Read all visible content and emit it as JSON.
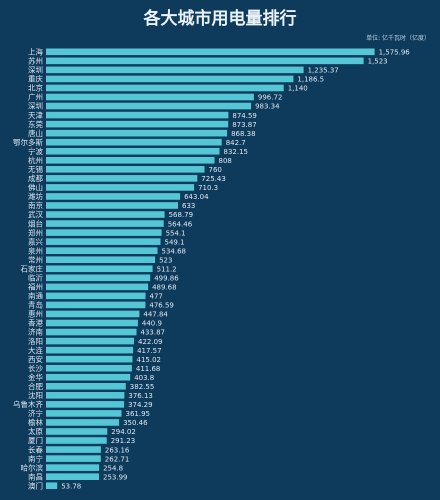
{
  "chart_data": {
    "type": "bar",
    "orientation": "horizontal",
    "title": "各大城市用电量排行",
    "unit_label": "单位: 亿千瓦时（亿度）",
    "bar_color": "#55c6d6",
    "background_color": "#0e3a5c",
    "grid": false,
    "legend": false,
    "xlim": [
      0,
      1640
    ],
    "categories": [
      "上海",
      "苏州",
      "深圳",
      "重庆",
      "北京",
      "广州",
      "深圳",
      "天津",
      "东莞",
      "唐山",
      "鄂尔多斯",
      "宁波",
      "杭州",
      "无锡",
      "成都",
      "佛山",
      "潍坊",
      "南京",
      "武汉",
      "烟台",
      "郑州",
      "嘉兴",
      "泉州",
      "常州",
      "石家庄",
      "临沂",
      "福州",
      "南通",
      "青岛",
      "惠州",
      "香港",
      "济南",
      "洛阳",
      "大连",
      "西安",
      "长沙",
      "金华",
      "合肥",
      "沈阳",
      "乌鲁木齐",
      "济宁",
      "榆林",
      "太原",
      "厦门",
      "长春",
      "南宁",
      "哈尔滨",
      "南昌",
      "澳门"
    ],
    "values": [
      1575.96,
      1523,
      1235.37,
      1186.5,
      1140,
      996.72,
      983.34,
      874.59,
      873.87,
      868.38,
      842.7,
      832.15,
      808,
      760,
      725.43,
      710.3,
      643.04,
      633,
      568.79,
      564.46,
      554.1,
      549.1,
      534.68,
      523,
      511.2,
      499.86,
      489.68,
      477,
      476.59,
      447.84,
      440.9,
      433.87,
      422.09,
      417.57,
      415.02,
      411.68,
      403.8,
      382.55,
      376.13,
      374.29,
      361.95,
      350.46,
      294.02,
      291.23,
      263.16,
      262.71,
      254.8,
      253.99,
      53.78
    ],
    "value_labels": [
      "1,575.96",
      "1,523",
      "1,235.37",
      "1,186.5",
      "1,140",
      "996.72",
      "983.34",
      "874.59",
      "873.87",
      "868.38",
      "842.7",
      "832.15",
      "808",
      "760",
      "725.43",
      "710.3",
      "643.04",
      "633",
      "568.79",
      "564.46",
      "554.1",
      "549.1",
      "534.68",
      "523",
      "511.2",
      "499.86",
      "489.68",
      "477",
      "476.59",
      "447.84",
      "440.9",
      "433.87",
      "422.09",
      "417.57",
      "415.02",
      "411.68",
      "403.8",
      "382.55",
      "376.13",
      "374.29",
      "361.95",
      "350.46",
      "294.02",
      "291.23",
      "263.16",
      "262.71",
      "254.8",
      "253.99",
      "53.78"
    ]
  }
}
